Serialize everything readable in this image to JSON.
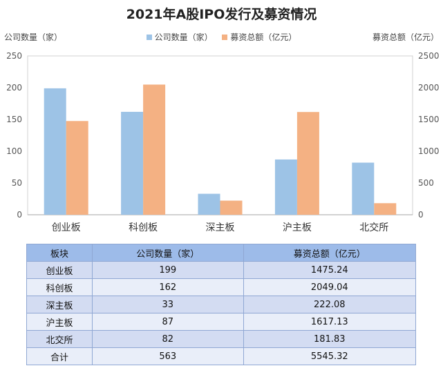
{
  "chart_data": {
    "type": "bar",
    "title": "2021年A股IPO发行及募资情况",
    "ylabel": "公司数量（家）",
    "y2label": "募资总额（亿元）",
    "categories": [
      "创业板",
      "科创板",
      "深主板",
      "沪主板",
      "北交所"
    ],
    "series": [
      {
        "name": "公司数量（家）",
        "axis": "left",
        "color": "#9dc3e6",
        "values": [
          199,
          162,
          33,
          87,
          82
        ]
      },
      {
        "name": "募资总额（亿元）",
        "axis": "right",
        "color": "#f4b183",
        "values": [
          1475.24,
          2049.04,
          222.08,
          1617.13,
          181.83
        ]
      }
    ],
    "ylim": [
      0,
      250
    ],
    "y2lim": [
      0,
      2500
    ],
    "yticks": [
      "0",
      "50",
      "100",
      "150",
      "200",
      "250"
    ],
    "y2ticks": [
      "0",
      "500",
      "1000",
      "1500",
      "2000",
      "2500"
    ],
    "grid": false,
    "legend_position": "top-center"
  },
  "table": {
    "headers": [
      "板块",
      "公司数量（家）",
      "募资总额（亿元）"
    ],
    "rows": [
      [
        "创业板",
        "199",
        "1475.24"
      ],
      [
        "科创板",
        "162",
        "2049.04"
      ],
      [
        "深主板",
        "33",
        "222.08"
      ],
      [
        "沪主板",
        "87",
        "1617.13"
      ],
      [
        "北交所",
        "82",
        "181.83"
      ],
      [
        "合计",
        "563",
        "5545.32"
      ]
    ]
  }
}
